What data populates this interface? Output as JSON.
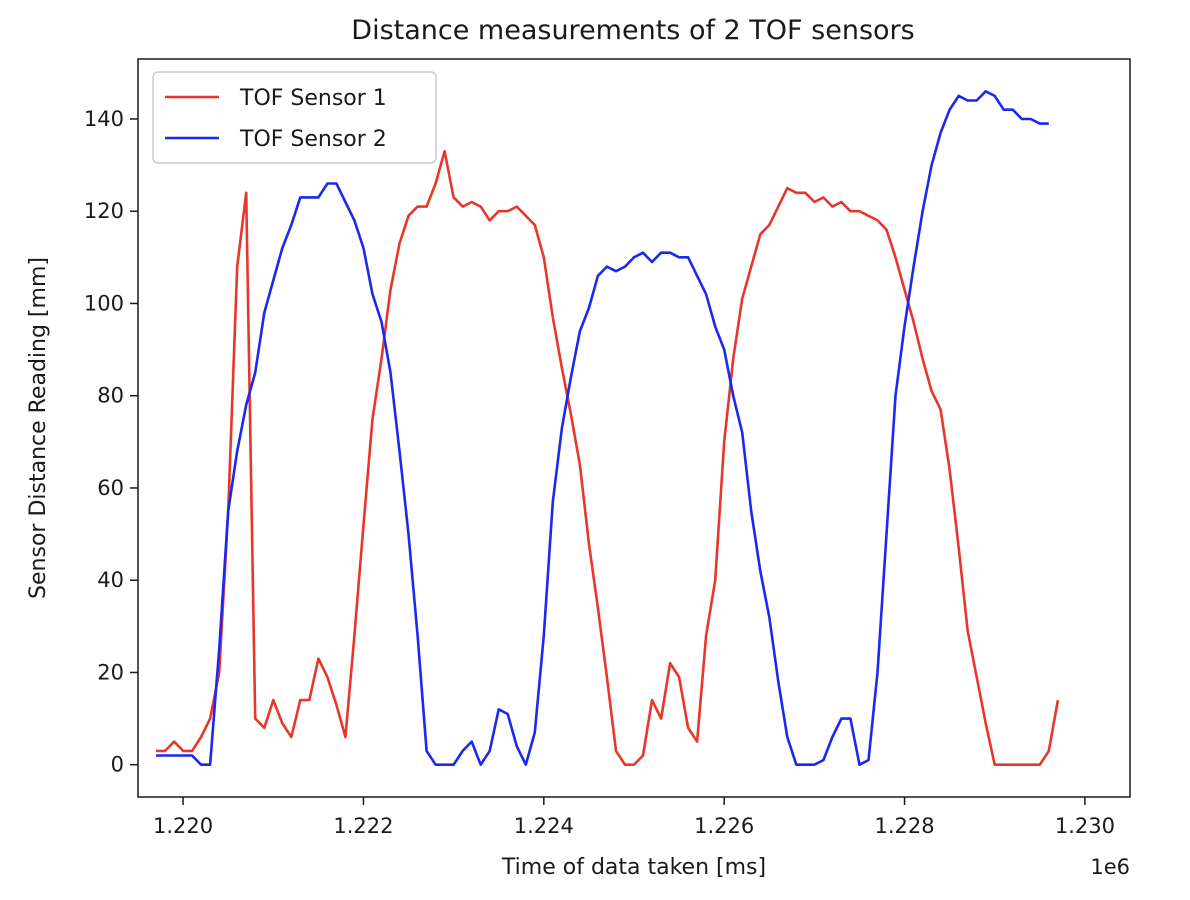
{
  "chart_data": {
    "type": "line",
    "title": "Distance measurements of 2 TOF sensors",
    "xlabel": "Time of data taken [ms]",
    "ylabel": "Sensor Distance Reading [mm]",
    "x_offset_label": "1e6",
    "xlim": [
      1219500,
      1230500
    ],
    "ylim": [
      -7,
      153
    ],
    "x_ticks": [
      1220000,
      1222000,
      1224000,
      1226000,
      1228000,
      1230000
    ],
    "x_tick_labels": [
      "1.220",
      "1.222",
      "1.224",
      "1.226",
      "1.228",
      "1.230"
    ],
    "y_ticks": [
      0,
      20,
      40,
      60,
      80,
      100,
      120,
      140
    ],
    "y_tick_labels": [
      "0",
      "20",
      "40",
      "60",
      "80",
      "100",
      "120",
      "140"
    ],
    "grid": false,
    "legend": "top-left",
    "series": [
      {
        "name": "TOF Sensor 1",
        "color": "#e8372a",
        "points": [
          [
            1219700,
            3
          ],
          [
            1219800,
            3
          ],
          [
            1219900,
            5
          ],
          [
            1220000,
            3
          ],
          [
            1220100,
            3
          ],
          [
            1220200,
            6
          ],
          [
            1220300,
            10
          ],
          [
            1220400,
            20
          ],
          [
            1220500,
            55
          ],
          [
            1220600,
            108
          ],
          [
            1220700,
            124
          ],
          [
            1220800,
            10
          ],
          [
            1220900,
            8
          ],
          [
            1221000,
            14
          ],
          [
            1221100,
            9
          ],
          [
            1221200,
            6
          ],
          [
            1221300,
            14
          ],
          [
            1221400,
            14
          ],
          [
            1221500,
            23
          ],
          [
            1221600,
            19
          ],
          [
            1221700,
            13
          ],
          [
            1221800,
            6
          ],
          [
            1221900,
            28
          ],
          [
            1222000,
            52
          ],
          [
            1222100,
            75
          ],
          [
            1222200,
            88
          ],
          [
            1222300,
            103
          ],
          [
            1222400,
            113
          ],
          [
            1222500,
            119
          ],
          [
            1222600,
            121
          ],
          [
            1222700,
            121
          ],
          [
            1222800,
            126
          ],
          [
            1222900,
            133
          ],
          [
            1223000,
            123
          ],
          [
            1223100,
            121
          ],
          [
            1223200,
            122
          ],
          [
            1223300,
            121
          ],
          [
            1223400,
            118
          ],
          [
            1223500,
            120
          ],
          [
            1223600,
            120
          ],
          [
            1223700,
            121
          ],
          [
            1223800,
            119
          ],
          [
            1223900,
            117
          ],
          [
            1224000,
            110
          ],
          [
            1224100,
            97
          ],
          [
            1224200,
            86
          ],
          [
            1224300,
            76
          ],
          [
            1224400,
            65
          ],
          [
            1224500,
            48
          ],
          [
            1224600,
            34
          ],
          [
            1224700,
            19
          ],
          [
            1224800,
            3
          ],
          [
            1224900,
            0
          ],
          [
            1225000,
            0
          ],
          [
            1225100,
            2
          ],
          [
            1225200,
            14
          ],
          [
            1225300,
            10
          ],
          [
            1225400,
            22
          ],
          [
            1225500,
            19
          ],
          [
            1225600,
            8
          ],
          [
            1225700,
            5
          ],
          [
            1225800,
            28
          ],
          [
            1225900,
            40
          ],
          [
            1226000,
            70
          ],
          [
            1226100,
            88
          ],
          [
            1226200,
            101
          ],
          [
            1226300,
            108
          ],
          [
            1226400,
            115
          ],
          [
            1226500,
            117
          ],
          [
            1226600,
            121
          ],
          [
            1226700,
            125
          ],
          [
            1226800,
            124
          ],
          [
            1226900,
            124
          ],
          [
            1227000,
            122
          ],
          [
            1227100,
            123
          ],
          [
            1227200,
            121
          ],
          [
            1227300,
            122
          ],
          [
            1227400,
            120
          ],
          [
            1227500,
            120
          ],
          [
            1227600,
            119
          ],
          [
            1227700,
            118
          ],
          [
            1227800,
            116
          ],
          [
            1227900,
            110
          ],
          [
            1228000,
            103
          ],
          [
            1228100,
            96
          ],
          [
            1228200,
            88
          ],
          [
            1228300,
            81
          ],
          [
            1228400,
            77
          ],
          [
            1228500,
            64
          ],
          [
            1228600,
            47
          ],
          [
            1228700,
            29
          ],
          [
            1228800,
            19
          ],
          [
            1228900,
            9
          ],
          [
            1229000,
            0
          ],
          [
            1229100,
            0
          ],
          [
            1229200,
            0
          ],
          [
            1229300,
            0
          ],
          [
            1229400,
            0
          ],
          [
            1229500,
            0
          ],
          [
            1229600,
            3
          ],
          [
            1229700,
            14
          ]
        ]
      },
      {
        "name": "TOF Sensor 2",
        "color": "#1a28f0",
        "points": [
          [
            1219700,
            2
          ],
          [
            1219800,
            2
          ],
          [
            1219900,
            2
          ],
          [
            1220000,
            2
          ],
          [
            1220100,
            2
          ],
          [
            1220200,
            0
          ],
          [
            1220300,
            0
          ],
          [
            1220400,
            25
          ],
          [
            1220500,
            55
          ],
          [
            1220600,
            68
          ],
          [
            1220700,
            78
          ],
          [
            1220800,
            85
          ],
          [
            1220900,
            98
          ],
          [
            1221000,
            105
          ],
          [
            1221100,
            112
          ],
          [
            1221200,
            117
          ],
          [
            1221300,
            123
          ],
          [
            1221400,
            123
          ],
          [
            1221500,
            123
          ],
          [
            1221600,
            126
          ],
          [
            1221700,
            126
          ],
          [
            1221800,
            122
          ],
          [
            1221900,
            118
          ],
          [
            1222000,
            112
          ],
          [
            1222100,
            102
          ],
          [
            1222200,
            96
          ],
          [
            1222300,
            85
          ],
          [
            1222400,
            68
          ],
          [
            1222500,
            50
          ],
          [
            1222600,
            28
          ],
          [
            1222700,
            3
          ],
          [
            1222800,
            0
          ],
          [
            1222900,
            0
          ],
          [
            1223000,
            0
          ],
          [
            1223100,
            3
          ],
          [
            1223200,
            5
          ],
          [
            1223300,
            0
          ],
          [
            1223400,
            3
          ],
          [
            1223500,
            12
          ],
          [
            1223600,
            11
          ],
          [
            1223700,
            4
          ],
          [
            1223800,
            0
          ],
          [
            1223900,
            7
          ],
          [
            1224000,
            28
          ],
          [
            1224100,
            57
          ],
          [
            1224200,
            73
          ],
          [
            1224300,
            84
          ],
          [
            1224400,
            94
          ],
          [
            1224500,
            99
          ],
          [
            1224600,
            106
          ],
          [
            1224700,
            108
          ],
          [
            1224800,
            107
          ],
          [
            1224900,
            108
          ],
          [
            1225000,
            110
          ],
          [
            1225100,
            111
          ],
          [
            1225200,
            109
          ],
          [
            1225300,
            111
          ],
          [
            1225400,
            111
          ],
          [
            1225500,
            110
          ],
          [
            1225600,
            110
          ],
          [
            1225700,
            106
          ],
          [
            1225800,
            102
          ],
          [
            1225900,
            95
          ],
          [
            1226000,
            90
          ],
          [
            1226100,
            80
          ],
          [
            1226200,
            72
          ],
          [
            1226300,
            55
          ],
          [
            1226400,
            42
          ],
          [
            1226500,
            32
          ],
          [
            1226600,
            18
          ],
          [
            1226700,
            6
          ],
          [
            1226800,
            0
          ],
          [
            1226900,
            0
          ],
          [
            1227000,
            0
          ],
          [
            1227100,
            1
          ],
          [
            1227200,
            6
          ],
          [
            1227300,
            10
          ],
          [
            1227400,
            10
          ],
          [
            1227500,
            0
          ],
          [
            1227600,
            1
          ],
          [
            1227700,
            20
          ],
          [
            1227800,
            50
          ],
          [
            1227900,
            80
          ],
          [
            1228000,
            95
          ],
          [
            1228100,
            108
          ],
          [
            1228200,
            120
          ],
          [
            1228300,
            130
          ],
          [
            1228400,
            137
          ],
          [
            1228500,
            142
          ],
          [
            1228600,
            145
          ],
          [
            1228700,
            144
          ],
          [
            1228800,
            144
          ],
          [
            1228900,
            146
          ],
          [
            1229000,
            145
          ],
          [
            1229100,
            142
          ],
          [
            1229200,
            142
          ],
          [
            1229300,
            140
          ],
          [
            1229400,
            140
          ],
          [
            1229500,
            139
          ],
          [
            1229600,
            139
          ]
        ]
      }
    ]
  }
}
